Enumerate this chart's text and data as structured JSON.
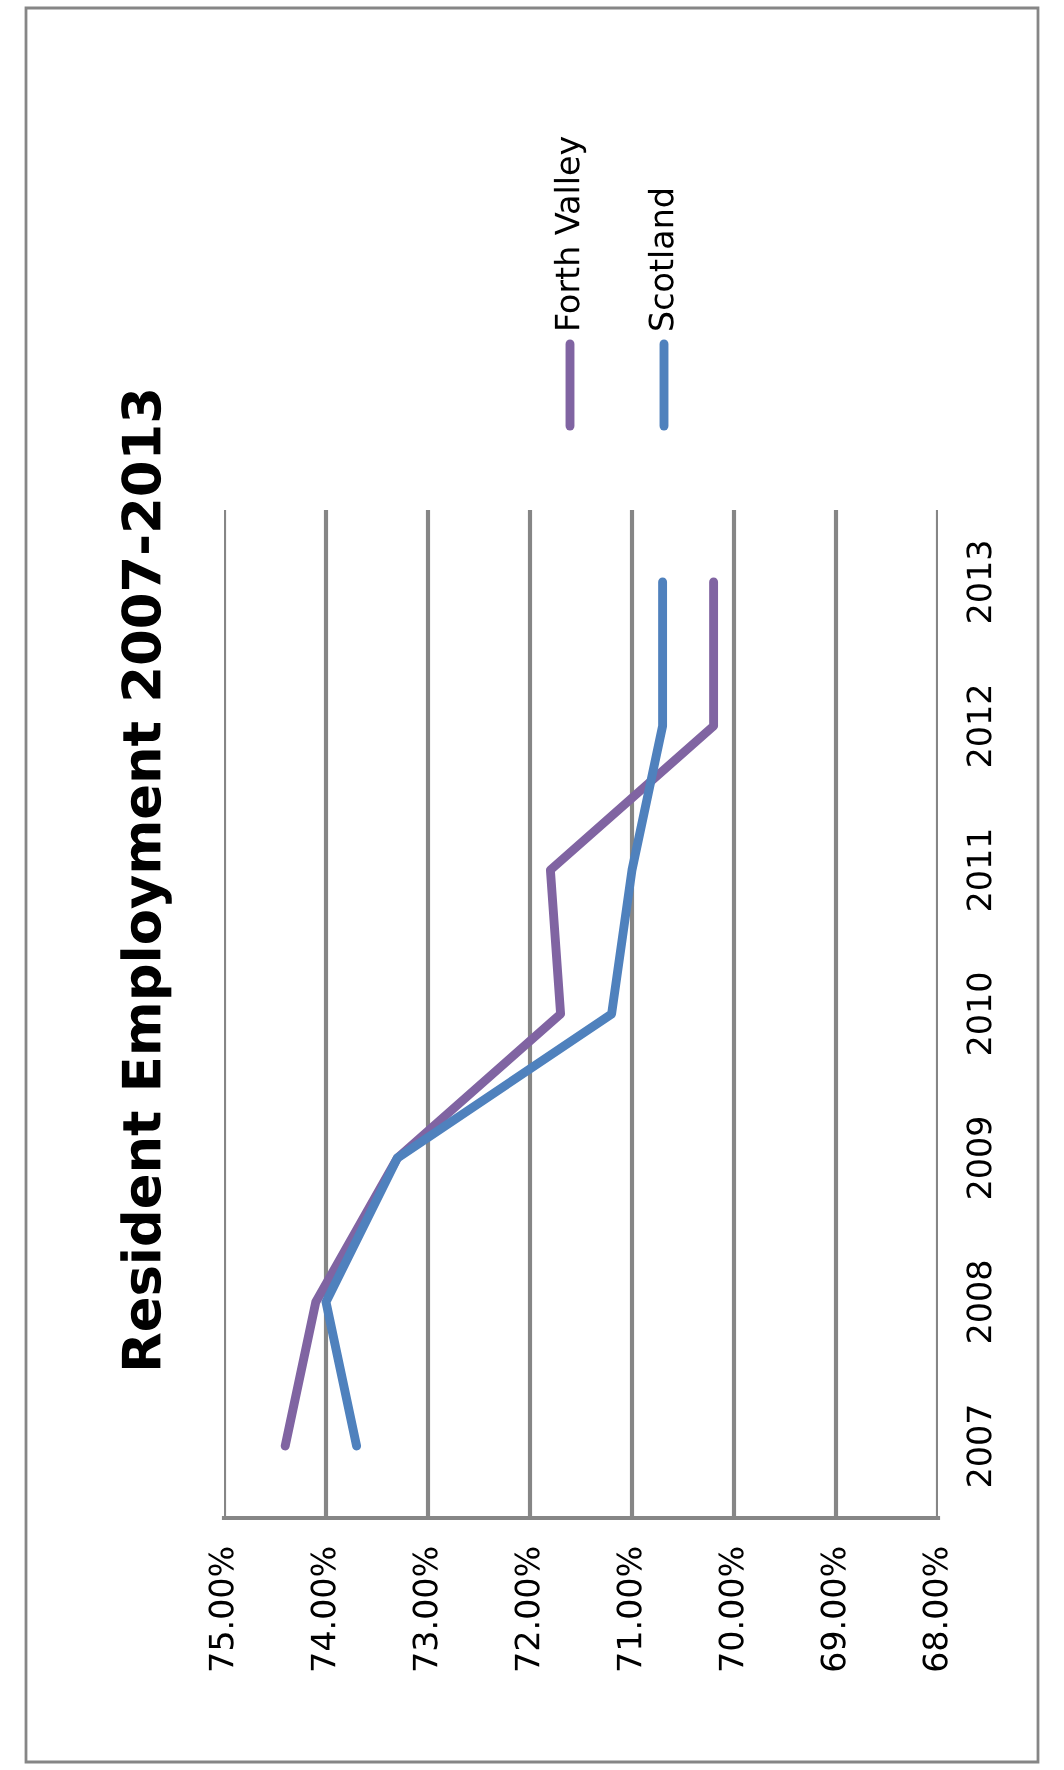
{
  "chart_data": {
    "type": "line",
    "title": "Resident Employment 2007-2013",
    "orientation": "horizontal",
    "categories": [
      "2013",
      "2012",
      "2011",
      "2010",
      "2009",
      "2008",
      "2007"
    ],
    "series": [
      {
        "name": "Forth Valley",
        "color": "#8064a2",
        "values": [
          70.2,
          70.2,
          71.8,
          71.7,
          73.3,
          74.1,
          74.4
        ]
      },
      {
        "name": "Scotland",
        "color": "#4f81bd",
        "values": [
          70.7,
          70.7,
          71.0,
          71.2,
          73.3,
          74.0,
          73.7
        ]
      }
    ],
    "xlim": [
      75,
      68
    ],
    "xticks": [
      {
        "value": 75,
        "label": "75.00%"
      },
      {
        "value": 74,
        "label": "74.00%"
      },
      {
        "value": 73,
        "label": "73.00%"
      },
      {
        "value": 72,
        "label": "72.00%"
      },
      {
        "value": 71,
        "label": "71.00%"
      },
      {
        "value": 70,
        "label": "70.00%"
      },
      {
        "value": 69,
        "label": "69.00%"
      },
      {
        "value": 68,
        "label": "68.00%"
      }
    ],
    "grid": "x",
    "legend": "top right",
    "marker": "none",
    "line_style": "solid"
  }
}
